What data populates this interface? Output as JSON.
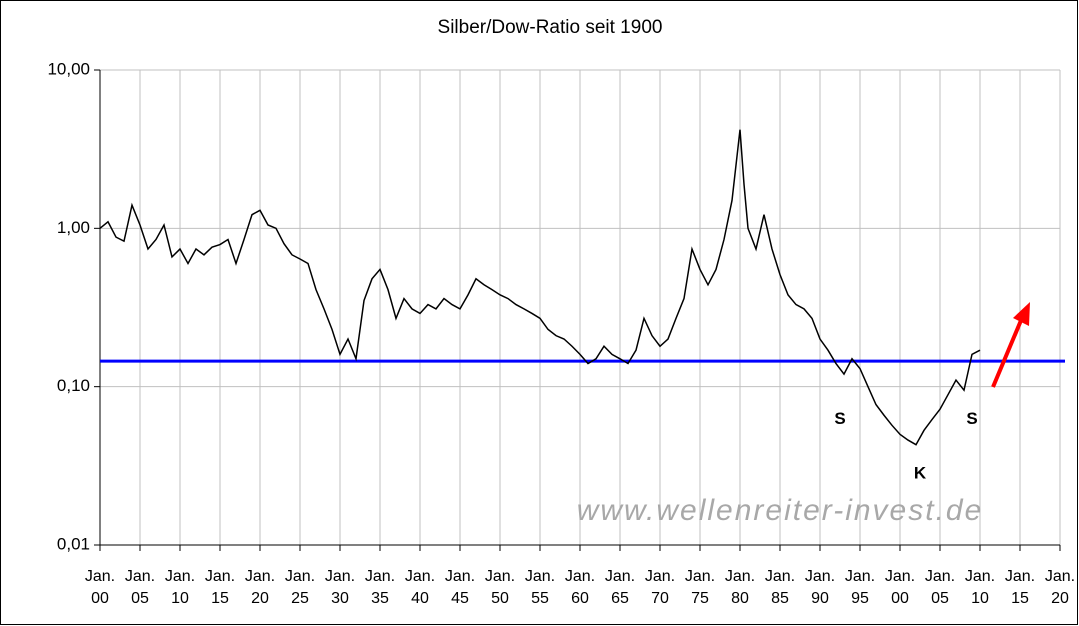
{
  "chart_data": {
    "type": "line",
    "title": "Silber/Dow-Ratio seit 1900",
    "log_y": true,
    "grid": true,
    "series": [
      {
        "color": "#000000",
        "x": [
          1900,
          1901,
          1902,
          1903,
          1904,
          1905,
          1906,
          1907,
          1908,
          1909,
          1910,
          1911,
          1912,
          1913,
          1914,
          1915,
          1916,
          1917,
          1918,
          1919,
          1920,
          1921,
          1922,
          1923,
          1924,
          1925,
          1926,
          1927,
          1928,
          1929,
          1930,
          1931,
          1932,
          1933,
          1934,
          1935,
          1936,
          1937,
          1938,
          1939,
          1940,
          1941,
          1942,
          1943,
          1944,
          1945,
          1946,
          1947,
          1948,
          1949,
          1950,
          1951,
          1952,
          1953,
          1954,
          1955,
          1956,
          1957,
          1958,
          1959,
          1960,
          1961,
          1962,
          1963,
          1964,
          1965,
          1966,
          1967,
          1968,
          1969,
          1970,
          1971,
          1972,
          1973,
          1974,
          1975,
          1976,
          1977,
          1978,
          1979,
          1980,
          1980.5,
          1981,
          1982,
          1983,
          1984,
          1985,
          1986,
          1987,
          1988,
          1989,
          1990,
          1991,
          1992,
          1993,
          1994,
          1995,
          1996,
          1997,
          1998,
          1999,
          2000,
          2001,
          2002,
          2003,
          2004,
          2005,
          2006,
          2007,
          2008,
          2009,
          2010
        ],
        "values": [
          1.0,
          1.1,
          0.88,
          0.83,
          1.4,
          1.05,
          0.74,
          0.85,
          1.05,
          0.66,
          0.74,
          0.6,
          0.74,
          0.68,
          0.76,
          0.79,
          0.85,
          0.6,
          0.85,
          1.22,
          1.3,
          1.05,
          1.0,
          0.8,
          0.68,
          0.64,
          0.6,
          0.41,
          0.31,
          0.23,
          0.16,
          0.2,
          0.15,
          0.35,
          0.48,
          0.55,
          0.41,
          0.27,
          0.36,
          0.31,
          0.29,
          0.33,
          0.31,
          0.36,
          0.33,
          0.31,
          0.38,
          0.48,
          0.44,
          0.41,
          0.38,
          0.36,
          0.33,
          0.31,
          0.29,
          0.27,
          0.23,
          0.21,
          0.2,
          0.18,
          0.16,
          0.14,
          0.15,
          0.18,
          0.16,
          0.15,
          0.14,
          0.17,
          0.27,
          0.21,
          0.18,
          0.2,
          0.27,
          0.36,
          0.74,
          0.55,
          0.44,
          0.55,
          0.85,
          1.5,
          4.2,
          1.9,
          1.0,
          0.74,
          1.22,
          0.74,
          0.51,
          0.38,
          0.33,
          0.31,
          0.27,
          0.2,
          0.17,
          0.14,
          0.12,
          0.15,
          0.13,
          0.1,
          0.077,
          0.066,
          0.057,
          0.05,
          0.046,
          0.043,
          0.053,
          0.062,
          0.072,
          0.089,
          0.11,
          0.095,
          0.16,
          0.17
        ]
      }
    ],
    "reference_line": {
      "value": 0.145,
      "color": "#0000ff"
    },
    "xlim": [
      1900,
      2020
    ],
    "xticks": [
      {
        "value": 1900,
        "label": "Jan.\n00"
      },
      {
        "value": 1905,
        "label": "Jan.\n05"
      },
      {
        "value": 1910,
        "label": "Jan.\n10"
      },
      {
        "value": 1915,
        "label": "Jan.\n15"
      },
      {
        "value": 1920,
        "label": "Jan.\n20"
      },
      {
        "value": 1925,
        "label": "Jan.\n25"
      },
      {
        "value": 1930,
        "label": "Jan.\n30"
      },
      {
        "value": 1935,
        "label": "Jan.\n35"
      },
      {
        "value": 1940,
        "label": "Jan.\n40"
      },
      {
        "value": 1945,
        "label": "Jan.\n45"
      },
      {
        "value": 1950,
        "label": "Jan.\n50"
      },
      {
        "value": 1955,
        "label": "Jan.\n55"
      },
      {
        "value": 1960,
        "label": "Jan.\n60"
      },
      {
        "value": 1965,
        "label": "Jan.\n65"
      },
      {
        "value": 1970,
        "label": "Jan.\n70"
      },
      {
        "value": 1975,
        "label": "Jan.\n75"
      },
      {
        "value": 1980,
        "label": "Jan.\n80"
      },
      {
        "value": 1985,
        "label": "Jan.\n85"
      },
      {
        "value": 1990,
        "label": "Jan.\n90"
      },
      {
        "value": 1995,
        "label": "Jan.\n95"
      },
      {
        "value": 2000,
        "label": "Jan.\n00"
      },
      {
        "value": 2005,
        "label": "Jan.\n05"
      },
      {
        "value": 2010,
        "label": "Jan.\n10"
      },
      {
        "value": 2015,
        "label": "Jan.\n15"
      },
      {
        "value": 2020,
        "label": "Jan.\n20"
      }
    ],
    "ylim": [
      0.01,
      10
    ],
    "yticks": [
      {
        "value": 0.01,
        "label": "0,01"
      },
      {
        "value": 0.1,
        "label": "0,10"
      },
      {
        "value": 1,
        "label": "1,00"
      },
      {
        "value": 10,
        "label": "10,00"
      }
    ],
    "annotations": [
      {
        "text": "S",
        "x": 1992.5,
        "y": 0.062
      },
      {
        "text": "K",
        "x": 2002.5,
        "y": 0.028
      },
      {
        "text": "S",
        "x": 2009,
        "y": 0.062
      }
    ],
    "watermark": "www.wellenreiter-invest.de"
  }
}
